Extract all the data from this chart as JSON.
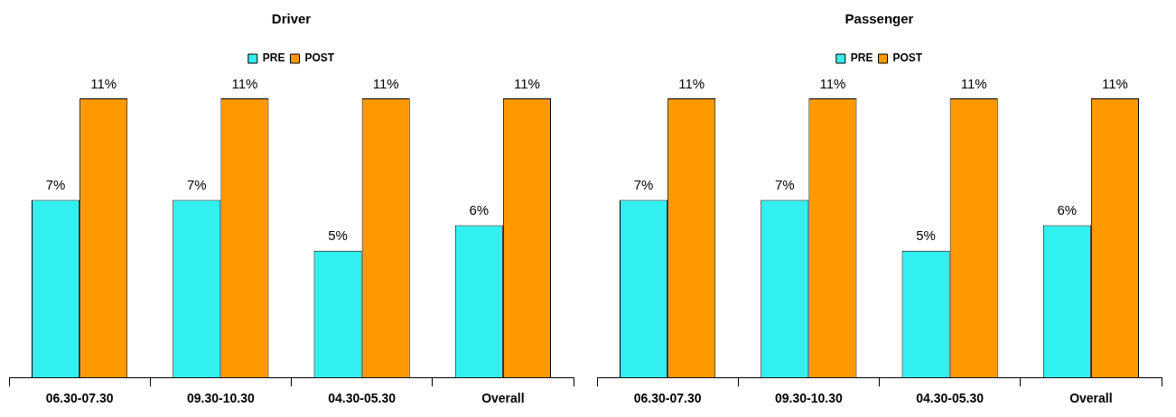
{
  "chart_data": [
    {
      "type": "bar",
      "title": "Driver",
      "categories": [
        "06.30-07.30",
        "09.30-10.30",
        "04.30-05.30",
        "Overall"
      ],
      "legend": "top",
      "series": [
        {
          "name": "PRE",
          "color": "#33f0f0",
          "values": [
            7,
            7,
            5,
            6
          ],
          "value_labels": [
            "7%",
            "7%",
            "5%",
            "6%"
          ]
        },
        {
          "name": "POST",
          "color": "#ff9900",
          "values": [
            11,
            11,
            11,
            11
          ],
          "value_labels": [
            "11%",
            "11%",
            "11%",
            "11%"
          ]
        }
      ]
    },
    {
      "type": "bar",
      "title": "Passenger",
      "categories": [
        "06.30-07.30",
        "09.30-10.30",
        "04.30-05.30",
        "Overall"
      ],
      "legend": "top",
      "series": [
        {
          "name": "PRE",
          "color": "#33f0f0",
          "values": [
            7,
            7,
            5,
            6
          ],
          "value_labels": [
            "7%",
            "7%",
            "5%",
            "6%"
          ]
        },
        {
          "name": "POST",
          "color": "#ff9900",
          "values": [
            11,
            11,
            11,
            11
          ],
          "value_labels": [
            "11%",
            "11%",
            "11%",
            "11%"
          ]
        }
      ]
    }
  ]
}
